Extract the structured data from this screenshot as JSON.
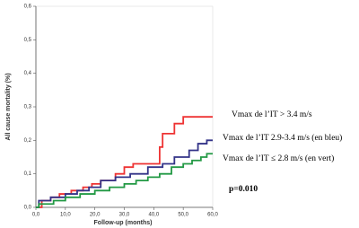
{
  "chart_data": {
    "type": "step",
    "xlabel": "Follow-up (months)",
    "ylabel": "All cause mortality (%)",
    "xlim": [
      0,
      60
    ],
    "ylim": [
      0,
      0.6
    ],
    "xticks": [
      {
        "value": 0,
        "label": "0,0"
      },
      {
        "value": 10,
        "label": "10,0"
      },
      {
        "value": 20,
        "label": "20,0"
      },
      {
        "value": 30,
        "label": "30,0"
      },
      {
        "value": 40,
        "label": "40,0"
      },
      {
        "value": 50,
        "label": "50,0"
      },
      {
        "value": 60,
        "label": "60,0"
      }
    ],
    "yticks": [
      {
        "value": 0,
        "label": "0,0"
      },
      {
        "value": 0.1,
        "label": "0,1"
      },
      {
        "value": 0.2,
        "label": "0,2"
      },
      {
        "value": 0.3,
        "label": "0,3"
      },
      {
        "value": 0.4,
        "label": "0,4"
      },
      {
        "value": 0.5,
        "label": "0,5"
      },
      {
        "value": 0.6,
        "label": "0,6"
      }
    ],
    "grid": false,
    "series": [
      {
        "name": "Vmax de l’IT > 3.4 m/s",
        "color": "#ee3333",
        "x": [
          0,
          2,
          5,
          8,
          12,
          16,
          19,
          22,
          27,
          30,
          33,
          42,
          43,
          47,
          50,
          60
        ],
        "values": [
          0,
          0.02,
          0.03,
          0.04,
          0.05,
          0.06,
          0.07,
          0.08,
          0.1,
          0.12,
          0.13,
          0.18,
          0.22,
          0.25,
          0.27,
          0.27
        ]
      },
      {
        "name": "Vmax de l’IT  2.9-3.4 m/s (en bleu)",
        "color": "#333388",
        "x": [
          0,
          1,
          5,
          10,
          14,
          18,
          22,
          27,
          32,
          38,
          43,
          47,
          52,
          55,
          58,
          60
        ],
        "values": [
          0,
          0.02,
          0.03,
          0.04,
          0.05,
          0.06,
          0.08,
          0.09,
          0.1,
          0.12,
          0.13,
          0.15,
          0.17,
          0.19,
          0.2,
          0.2
        ]
      },
      {
        "name": "Vmax de l’IT ≤ 2.8 m/s (en vert)",
        "color": "#229944",
        "x": [
          0,
          1,
          6,
          10,
          15,
          20,
          25,
          30,
          34,
          38,
          42,
          46,
          50,
          53,
          56,
          58,
          60
        ],
        "values": [
          0,
          0.01,
          0.02,
          0.03,
          0.04,
          0.05,
          0.06,
          0.07,
          0.08,
          0.09,
          0.1,
          0.12,
          0.13,
          0.14,
          0.15,
          0.16,
          0.16
        ]
      }
    ],
    "annotations": [
      "p=0.010"
    ]
  }
}
